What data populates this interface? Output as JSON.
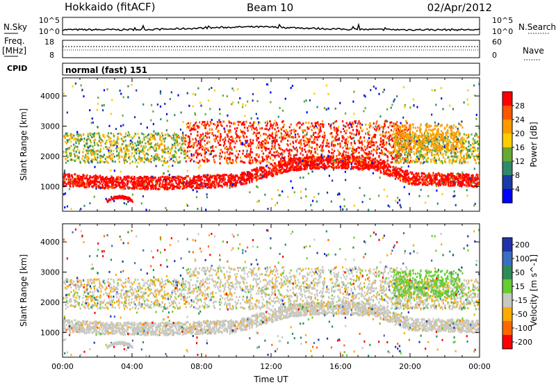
{
  "header": {
    "station": "Hokkaido (fitACF)",
    "beam": "Beam 10",
    "date": "02/Apr/2012"
  },
  "noise_panel": {
    "left_label": "N.Sky",
    "right_label": "N.Search",
    "top_tick": "10^5",
    "bottom_tick": "10^0"
  },
  "freq_panel": {
    "left_label_1": "Freq.",
    "left_label_2": "[MHz]",
    "right_label": "Nave",
    "left_ticks": [
      "18",
      "8"
    ],
    "right_ticks": [
      "60",
      "0"
    ]
  },
  "cpid_panel": {
    "label": "CPID",
    "text": "normal (fast) 151"
  },
  "chart_data": [
    {
      "type": "heatmap",
      "name": "power",
      "xlabel": "",
      "ylabel": "Slant Range [km]",
      "colorbar_label": "Power [dB]",
      "y_ticks": [
        "4000",
        "3000",
        "2000",
        "1000"
      ],
      "colorbar_ticks": [
        "28",
        "24",
        "20",
        "16",
        "12",
        "8",
        "4"
      ],
      "colors": [
        "#ff0000",
        "#ff5500",
        "#ff9900",
        "#ffcc00",
        "#66aa33",
        "#2f8a6a",
        "#1a3aa6",
        "#0000ff"
      ],
      "xlim": [
        0,
        24
      ],
      "ylim": [
        180,
        4600
      ]
    },
    {
      "type": "heatmap",
      "name": "velocity",
      "xlabel": "Time UT",
      "ylabel": "Slant Range [km]",
      "colorbar_label": "Velocity [m s^-1]",
      "y_ticks": [
        "4000",
        "3000",
        "2000",
        "1000"
      ],
      "x_ticks": [
        "00:00",
        "04:00",
        "08:00",
        "12:00",
        "16:00",
        "20:00",
        "00:00"
      ],
      "colorbar_ticks": [
        "200",
        "100",
        "50",
        "15",
        "-15",
        "-50",
        "-100",
        "-200"
      ],
      "colors": [
        "#2233aa",
        "#3a6ec0",
        "#2e8b57",
        "#66cc33",
        "#c8c8c0",
        "#ffaa00",
        "#ff6600",
        "#ff0000"
      ],
      "xlim": [
        0,
        24
      ],
      "ylim": [
        180,
        4600
      ]
    }
  ]
}
